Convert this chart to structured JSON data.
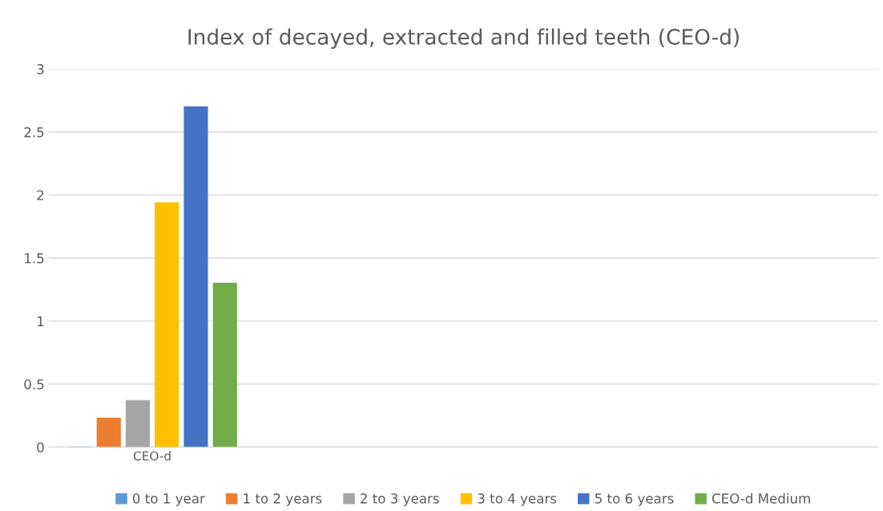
{
  "chart_data": {
    "type": "bar",
    "title": "Index of decayed, extracted and filled teeth (CEO-d)",
    "categories": [
      "CEO-d",
      null,
      null,
      null
    ],
    "series": [
      {
        "name": "0 to 1 year",
        "color": "#5b9bd5",
        "values": [
          0,
          null,
          null,
          null
        ]
      },
      {
        "name": "1 to 2 years",
        "color": "#ed7d31",
        "values": [
          0.23,
          null,
          null,
          null
        ]
      },
      {
        "name": "2 to 3 years",
        "color": "#a5a5a5",
        "values": [
          0.37,
          null,
          null,
          null
        ]
      },
      {
        "name": "3 to 4 years",
        "color": "#ffc000",
        "values": [
          1.94,
          null,
          null,
          null
        ]
      },
      {
        "name": "5 to 6 years",
        "color": "#4472c4",
        "values": [
          2.7,
          null,
          null,
          null
        ]
      },
      {
        "name": "CEO-d Medium",
        "color": "#70ad47",
        "values": [
          1.3,
          null,
          null,
          null
        ]
      }
    ],
    "ylim": [
      0,
      3
    ],
    "yticks": [
      0,
      0.5,
      1,
      1.5,
      2,
      2.5,
      3
    ],
    "grid": "y",
    "legend": "bottom"
  }
}
